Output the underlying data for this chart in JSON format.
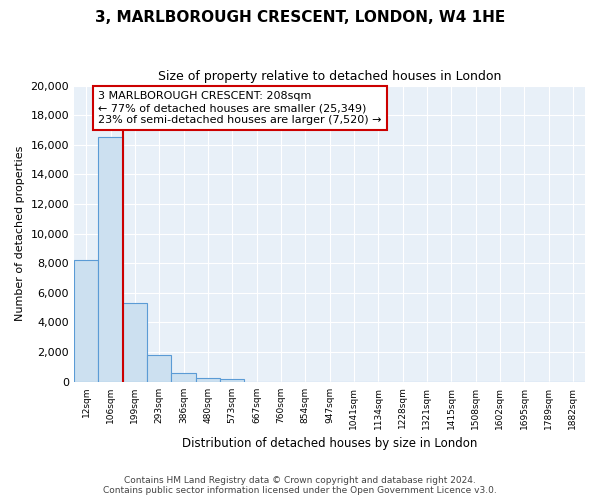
{
  "title": "3, MARLBOROUGH CRESCENT, LONDON, W4 1HE",
  "subtitle": "Size of property relative to detached houses in London",
  "bar_values": [
    8200,
    16550,
    5300,
    1800,
    600,
    230,
    170,
    0,
    0,
    0,
    0,
    0,
    0,
    0,
    0,
    0,
    0,
    0,
    0,
    0
  ],
  "categories": [
    "12sqm",
    "106sqm",
    "199sqm",
    "293sqm",
    "386sqm",
    "480sqm",
    "573sqm",
    "667sqm",
    "760sqm",
    "854sqm",
    "947sqm",
    "1041sqm",
    "1134sqm",
    "1228sqm",
    "1321sqm",
    "1415sqm",
    "1508sqm",
    "1602sqm",
    "1695sqm",
    "1789sqm",
    "1882sqm"
  ],
  "bar_color": "#cce0f0",
  "bar_edge_color": "#5b9bd5",
  "property_line_x": 2,
  "property_line_color": "#cc0000",
  "box_text_line1": "3 MARLBOROUGH CRESCENT: 208sqm",
  "box_text_line2": "← 77% of detached houses are smaller (25,349)",
  "box_text_line3": "23% of semi-detached houses are larger (7,520) →",
  "box_color": "#cc0000",
  "box_bg": "white",
  "ylabel": "Number of detached properties",
  "xlabel": "Distribution of detached houses by size in London",
  "ylim": [
    0,
    20000
  ],
  "yticks": [
    0,
    2000,
    4000,
    6000,
    8000,
    10000,
    12000,
    14000,
    16000,
    18000,
    20000
  ],
  "footnote1": "Contains HM Land Registry data © Crown copyright and database right 2024.",
  "footnote2": "Contains public sector information licensed under the Open Government Licence v3.0.",
  "bg_color": "#e8f0f8",
  "plot_bg": "#e8f0f8"
}
